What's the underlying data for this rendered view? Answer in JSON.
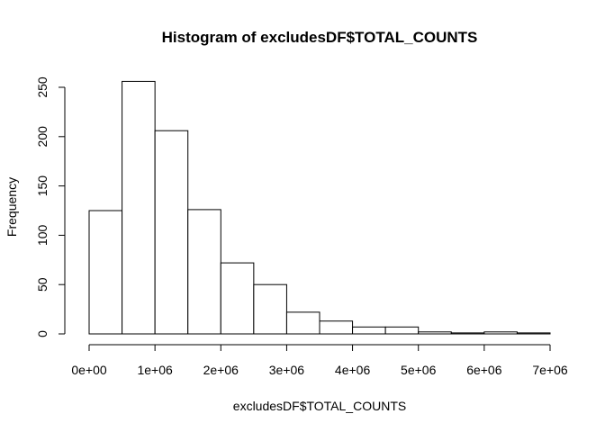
{
  "chart_data": {
    "type": "bar",
    "title": "Histogram of excludesDF$TOTAL_COUNTS",
    "xlabel": "excludesDF$TOTAL_COUNTS",
    "ylabel": "Frequency",
    "bin_edges": [
      0,
      500000,
      1000000,
      1500000,
      2000000,
      2500000,
      3000000,
      3500000,
      4000000,
      4500000,
      5000000,
      5500000,
      6000000,
      6500000,
      7000000
    ],
    "values": [
      125,
      256,
      206,
      126,
      72,
      50,
      22,
      13,
      7,
      7,
      2,
      1,
      2,
      1
    ],
    "xlim": [
      0,
      7000000
    ],
    "ylim": [
      0,
      250
    ],
    "x_ticks": [
      0,
      1000000,
      2000000,
      3000000,
      4000000,
      5000000,
      6000000,
      7000000
    ],
    "x_tick_labels": [
      "0e+00",
      "1e+06",
      "2e+06",
      "3e+06",
      "4e+06",
      "5e+06",
      "6e+06",
      "7e+06"
    ],
    "y_ticks": [
      0,
      50,
      100,
      150,
      200,
      250
    ],
    "y_tick_labels": [
      "0",
      "50",
      "100",
      "150",
      "200",
      "250"
    ],
    "grid": false,
    "legend": "none"
  }
}
